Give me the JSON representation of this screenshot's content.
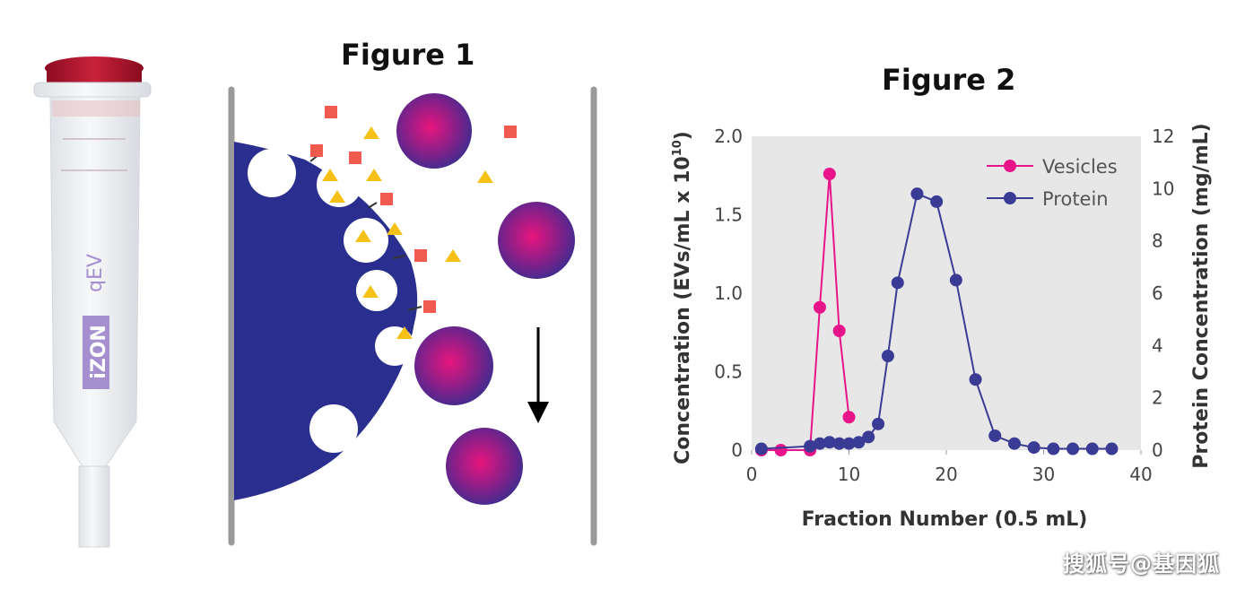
{
  "column": {
    "brand_label": "qEV",
    "logo_text": "iZON",
    "colors": {
      "cap": "#b3122e",
      "label": "#a58fcf",
      "body": "#eef0f2"
    }
  },
  "figure1": {
    "title": "Figure 1",
    "colors": {
      "matrix": "#2a2f8f",
      "vesicle_center": "#e8157e",
      "vesicle_edge": "#3a2d8f",
      "square": "#f05a4f",
      "triangle": "#f5c116",
      "wall": "#9a9a9a"
    },
    "flow_icon": "down-arrow-icon"
  },
  "figure2": {
    "title": "Figure 2",
    "chart_data": {
      "type": "line",
      "xlabel": "Fraction Number (0.5 mL)",
      "ylabel_left": "Concentration (EVs/mL x 10",
      "ylabel_left_sup": "10",
      "ylabel_left_end": ")",
      "ylabel_right": "Protein Concentration (mg/mL)",
      "xlim": [
        0,
        40
      ],
      "ylim_left": [
        0,
        2.0
      ],
      "ylim_right": [
        0,
        12
      ],
      "x_ticks": [
        "0",
        "10",
        "20",
        "30",
        "40"
      ],
      "y_left_ticks": [
        "0",
        "0.5",
        "1.0",
        "1.5",
        "2.0"
      ],
      "y_right_ticks": [
        "0",
        "2",
        "4",
        "6",
        "8",
        "10",
        "12"
      ],
      "legend_position": "top-right",
      "grid": false,
      "series": [
        {
          "name": "Vesicles",
          "axis": "left",
          "color": "#e8158a",
          "points": [
            [
              1,
              0
            ],
            [
              3,
              0
            ],
            [
              6,
              0
            ],
            [
              7,
              0.91
            ],
            [
              8,
              1.76
            ],
            [
              9,
              0.76
            ],
            [
              10,
              0.21
            ]
          ]
        },
        {
          "name": "Protein",
          "axis": "right",
          "color": "#3a3b94",
          "points": [
            [
              1,
              0.05
            ],
            [
              6,
              0.15
            ],
            [
              7,
              0.25
            ],
            [
              8,
              0.3
            ],
            [
              9,
              0.25
            ],
            [
              10,
              0.25
            ],
            [
              11,
              0.3
            ],
            [
              12,
              0.5
            ],
            [
              13,
              1.0
            ],
            [
              14,
              3.6
            ],
            [
              15,
              6.4
            ],
            [
              17,
              9.8
            ],
            [
              19,
              9.5
            ],
            [
              21,
              6.5
            ],
            [
              23,
              2.7
            ],
            [
              25,
              0.55
            ],
            [
              27,
              0.25
            ],
            [
              29,
              0.1
            ],
            [
              31,
              0.05
            ],
            [
              33,
              0.05
            ],
            [
              35,
              0.05
            ],
            [
              37,
              0.05
            ]
          ]
        }
      ]
    }
  },
  "watermark": "搜狐号@基因狐"
}
